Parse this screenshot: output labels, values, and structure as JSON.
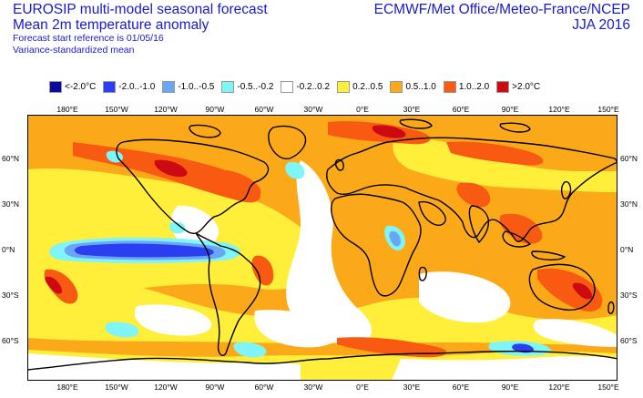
{
  "header": {
    "title_line1": "EUROSIP multi-model seasonal forecast",
    "title_line2": "Mean 2m temperature anomaly",
    "forecast_ref": "Forecast start reference is 01/05/16",
    "method": "Variance-standardized mean",
    "centres": "ECMWF/Met Office/Meteo-France/NCEP",
    "season": "JJA 2016"
  },
  "legend": [
    {
      "label": "<-2.0°C",
      "color": "#0a0a9c"
    },
    {
      "label": "-2.0..-1.0",
      "color": "#2a3ff0"
    },
    {
      "label": "-1.0..-0.5",
      "color": "#6aa6f5"
    },
    {
      "label": "-0.5..-0.2",
      "color": "#7ff5f7"
    },
    {
      "label": "-0.2..0.2",
      "color": "#ffffff"
    },
    {
      "label": "0.2..0.5",
      "color": "#ffee3a"
    },
    {
      "label": "0.5..1.0",
      "color": "#fca919"
    },
    {
      "label": "1.0..2.0",
      "color": "#f75a10"
    },
    {
      "label": ">2.0°C",
      "color": "#cc0a12"
    }
  ],
  "axes": {
    "lon_top": [
      "180°E",
      "150°W",
      "120°W",
      "90°W",
      "60°W",
      "30°W",
      "0°E",
      "30°E",
      "60°E",
      "90°E",
      "120°E",
      "150°E"
    ],
    "lon_bottom": [
      "180°E",
      "150°W",
      "120°W",
      "90°W",
      "60°W",
      "30°W",
      "0°E",
      "30°E",
      "60°E",
      "90°E",
      "120°E",
      "150°E"
    ],
    "lat_left": [
      "60°N",
      "30°N",
      "0°N",
      "30°S",
      "60°S"
    ],
    "lat_right": [
      "60°N",
      "30°N",
      "0°N",
      "30°S",
      "60°S"
    ]
  }
}
